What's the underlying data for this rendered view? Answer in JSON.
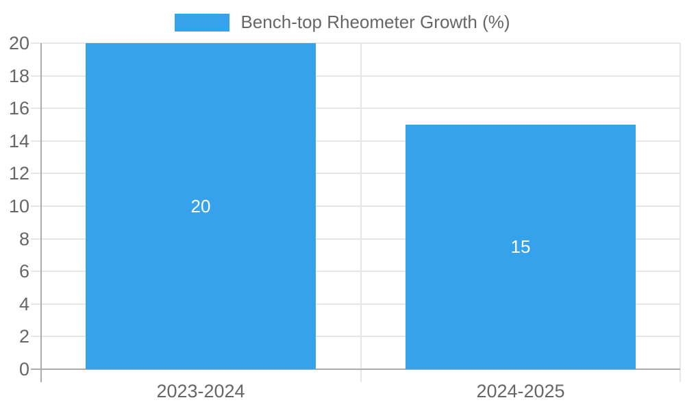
{
  "chart_data": {
    "type": "bar",
    "title": "",
    "legend": {
      "position": "top",
      "label": "Bench-top Rheometer Growth (%)"
    },
    "categories": [
      "2023-2024",
      "2024-2025"
    ],
    "series": [
      {
        "name": "Bench-top Rheometer Growth (%)",
        "values": [
          20,
          15
        ]
      }
    ],
    "data_labels": [
      "20",
      "15"
    ],
    "data_label_position": "center-of-bar",
    "xlabel": "",
    "ylabel": "",
    "y_axis": {
      "min": 0,
      "max": 20,
      "tick_step": 2,
      "tick_labels": [
        "0",
        "2",
        "4",
        "6",
        "8",
        "10",
        "12",
        "14",
        "16",
        "18",
        "20"
      ]
    },
    "grid": true,
    "colors": {
      "bar": "#36A2EB",
      "grid": "#e6e6e6",
      "axis": "#ababab",
      "text": "#666666",
      "data_label_text": "#ffffff",
      "background": "#ffffff"
    }
  }
}
